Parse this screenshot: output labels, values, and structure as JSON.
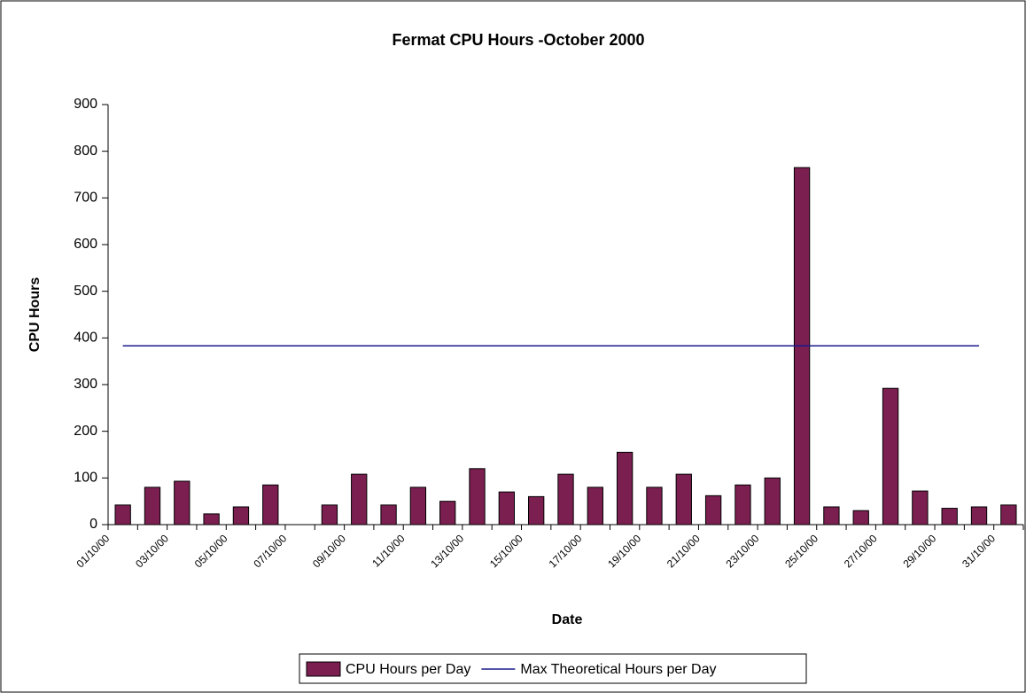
{
  "chart_data": {
    "type": "bar",
    "title": "Fermat CPU Hours -October 2000",
    "x_label": "Date",
    "y_label": "CPU Hours",
    "categories": [
      "01/10/00",
      null,
      "03/10/00",
      null,
      "05/10/00",
      null,
      "07/10/00",
      null,
      "09/10/00",
      null,
      "11/10/00",
      null,
      "13/10/00",
      null,
      "15/10/00",
      null,
      "17/10/00",
      null,
      "19/10/00",
      null,
      "21/10/00",
      null,
      "23/10/00",
      null,
      "25/10/00",
      null,
      "27/10/00",
      null,
      "29/10/00",
      null,
      "31/10/00"
    ],
    "series": [
      {
        "name": "CPU Hours per Day",
        "type": "bar",
        "color": "#7b1e50",
        "values": [
          42,
          80,
          93,
          23,
          38,
          85,
          0,
          42,
          108,
          42,
          80,
          50,
          120,
          70,
          60,
          108,
          80,
          155,
          80,
          108,
          62,
          85,
          100,
          765,
          38,
          30,
          292,
          72,
          35,
          38,
          42
        ]
      },
      {
        "name": "Max Theoretical Hours per Day",
        "type": "line",
        "color": "#1a1a8c",
        "values": [
          383,
          383,
          383,
          383,
          383,
          383,
          383,
          383,
          383,
          383,
          383,
          383,
          383,
          383,
          383,
          383,
          383,
          383,
          383,
          383,
          383,
          383,
          383,
          383,
          383,
          383,
          383,
          383,
          383,
          383,
          null
        ]
      }
    ],
    "ylim": [
      0,
      900
    ],
    "yticks": [
      0,
      100,
      200,
      300,
      400,
      500,
      600,
      700,
      800,
      900
    ],
    "grid": false,
    "legend": "bottom"
  }
}
